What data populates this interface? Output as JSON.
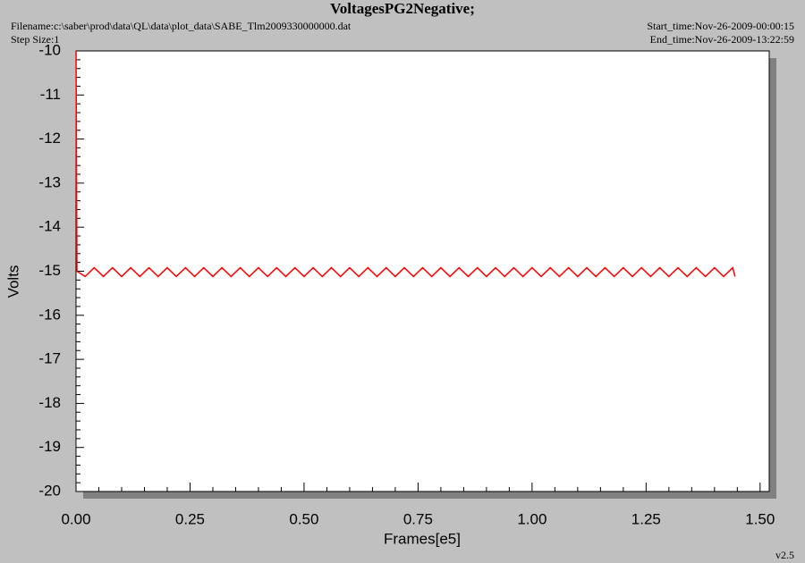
{
  "chart_data": {
    "type": "line",
    "title": "VoltagesPG2Negative;",
    "filename": "Filename:c:\\saber\\prod\\data\\QL\\data\\plot_data\\SABE_Tlm2009330000000.dat",
    "step_size": "Step Size:1",
    "start_time": "Start_time:Nov-26-2009-00:00:15",
    "end_time": "End_time:Nov-26-2009-13:22:59",
    "version": "v2.5",
    "xlabel": "Frames[e5]",
    "ylabel": "Volts",
    "xlim": [
      0,
      1.52
    ],
    "ylim": [
      -20,
      -10
    ],
    "xticks": [
      {
        "value": 0,
        "label": "0.00"
      },
      {
        "value": 0.25,
        "label": "0.25"
      },
      {
        "value": 0.5,
        "label": "0.50"
      },
      {
        "value": 0.75,
        "label": "0.75"
      },
      {
        "value": 1,
        "label": "1.00"
      },
      {
        "value": 1.25,
        "label": "1.25"
      },
      {
        "value": 1.5,
        "label": "1.50"
      }
    ],
    "yticks": [
      -10,
      -11,
      -12,
      -13,
      -14,
      -15,
      -16,
      -17,
      -18,
      -19,
      -20
    ],
    "series": [
      {
        "color": "#ff0000",
        "x": [
          0,
          0.002,
          0.02,
          0.04,
          0.06,
          0.08,
          0.1,
          0.12,
          0.14,
          0.16,
          0.18,
          0.2,
          0.22,
          0.24,
          0.26,
          0.28,
          0.3,
          0.32,
          0.34,
          0.36,
          0.38,
          0.4,
          0.42,
          0.44,
          0.46,
          0.48,
          0.5,
          0.52,
          0.54,
          0.56,
          0.58,
          0.6,
          0.62,
          0.64,
          0.66,
          0.68,
          0.7,
          0.72,
          0.74,
          0.76,
          0.78,
          0.8,
          0.82,
          0.84,
          0.86,
          0.88,
          0.9,
          0.92,
          0.94,
          0.96,
          0.98,
          1,
          1.02,
          1.04,
          1.06,
          1.08,
          1.1,
          1.12,
          1.14,
          1.16,
          1.18,
          1.2,
          1.22,
          1.24,
          1.26,
          1.28,
          1.3,
          1.32,
          1.34,
          1.36,
          1.38,
          1.4,
          1.42,
          1.44,
          1.445
        ],
        "values": [
          -10,
          -15,
          -15.12,
          -14.92,
          -15.12,
          -14.92,
          -15.12,
          -14.92,
          -15.12,
          -14.92,
          -15.12,
          -14.92,
          -15.12,
          -14.92,
          -15.12,
          -14.92,
          -15.12,
          -14.92,
          -15.12,
          -14.92,
          -15.12,
          -14.92,
          -15.12,
          -14.92,
          -15.12,
          -14.92,
          -15.12,
          -14.92,
          -15.12,
          -14.92,
          -15.12,
          -14.92,
          -15.12,
          -14.92,
          -15.12,
          -14.92,
          -15.12,
          -14.92,
          -15.12,
          -14.92,
          -15.12,
          -14.92,
          -15.12,
          -14.92,
          -15.12,
          -14.92,
          -15.12,
          -14.92,
          -15.12,
          -14.92,
          -15.12,
          -14.92,
          -15.12,
          -14.92,
          -15.12,
          -14.92,
          -15.12,
          -14.92,
          -15.12,
          -14.92,
          -15.12,
          -14.92,
          -15.12,
          -14.92,
          -15.12,
          -14.92,
          -15.12,
          -14.92,
          -15.12,
          -14.92,
          -15.12,
          -14.92,
          -15.12,
          -14.92,
          -15.12
        ]
      }
    ]
  }
}
